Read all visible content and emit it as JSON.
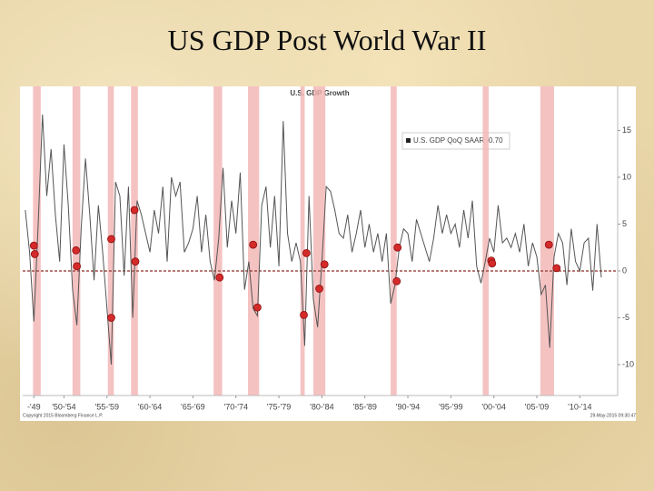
{
  "slide_title": "US GDP Post World War II",
  "chart_data": {
    "type": "line",
    "title": "U.S. GDP Growth",
    "legend_label": "U.S. GDP QoQ SAAR -0.70",
    "footer_left": "Copyright 2015 Bloomberg Finance L.P.",
    "footer_right": "29-May-2015 09:30:47",
    "xlim": [
      1947.7,
      2016.9
    ],
    "xticks": [
      {
        "value": 1949,
        "label": "-'49"
      },
      {
        "value": 1952.5,
        "label": "'50-'54"
      },
      {
        "value": 1957.5,
        "label": "'55-'59"
      },
      {
        "value": 1962.5,
        "label": "'60-'64"
      },
      {
        "value": 1967.5,
        "label": "'65-'69"
      },
      {
        "value": 1972.5,
        "label": "'70-'74"
      },
      {
        "value": 1977.5,
        "label": "'75-'79"
      },
      {
        "value": 1982.5,
        "label": "'80-'84"
      },
      {
        "value": 1987.5,
        "label": "'85-'89"
      },
      {
        "value": 1992.5,
        "label": "'90-'94"
      },
      {
        "value": 1997.5,
        "label": "'95-'99"
      },
      {
        "value": 2002.5,
        "label": "'00-'04"
      },
      {
        "value": 2007.5,
        "label": "'05-'09"
      },
      {
        "value": 2012.5,
        "label": "'10-'14"
      }
    ],
    "ylim": [
      -13.3,
      19.7
    ],
    "yticks": [
      15,
      10,
      5,
      0,
      -5,
      -10
    ],
    "reference_line": 0,
    "reference_color": "#a0504a",
    "recession_color": "#f3b3b3",
    "recessions": [
      [
        1948.9,
        1949.8
      ],
      [
        1953.5,
        1954.4
      ],
      [
        1957.6,
        1958.3
      ],
      [
        1960.3,
        1961.1
      ],
      [
        1969.9,
        1970.9
      ],
      [
        1973.9,
        1975.2
      ],
      [
        1980.0,
        1980.5
      ],
      [
        1981.5,
        1982.9
      ],
      [
        1990.5,
        1991.2
      ],
      [
        2001.2,
        2001.9
      ],
      [
        2007.9,
        2009.5
      ]
    ],
    "series": [
      {
        "name": "U.S. GDP QoQ SAAR",
        "color": "#555555",
        "x": [
          1948.0,
          1948.5,
          1949.0,
          1949.5,
          1950.0,
          1950.5,
          1951.0,
          1951.5,
          1952.0,
          1952.5,
          1953.0,
          1953.5,
          1954.0,
          1954.5,
          1955.0,
          1955.5,
          1956.0,
          1956.5,
          1957.0,
          1957.5,
          1958.0,
          1958.5,
          1959.0,
          1959.5,
          1960.0,
          1960.5,
          1961.0,
          1961.5,
          1962.0,
          1962.5,
          1963.0,
          1963.5,
          1964.0,
          1964.5,
          1965.0,
          1965.5,
          1966.0,
          1966.5,
          1967.0,
          1967.5,
          1968.0,
          1968.5,
          1969.0,
          1969.5,
          1970.0,
          1970.5,
          1971.0,
          1971.5,
          1972.0,
          1972.5,
          1973.0,
          1973.5,
          1974.0,
          1974.5,
          1975.0,
          1975.5,
          1976.0,
          1976.5,
          1977.0,
          1977.5,
          1978.0,
          1978.5,
          1979.0,
          1979.5,
          1980.0,
          1980.5,
          1981.0,
          1981.5,
          1982.0,
          1982.5,
          1983.0,
          1983.5,
          1984.0,
          1984.5,
          1985.0,
          1985.5,
          1986.0,
          1986.5,
          1987.0,
          1987.5,
          1988.0,
          1988.5,
          1989.0,
          1989.5,
          1990.0,
          1990.5,
          1991.0,
          1991.5,
          1992.0,
          1992.5,
          1993.0,
          1993.5,
          1994.0,
          1994.5,
          1995.0,
          1995.5,
          1996.0,
          1996.5,
          1997.0,
          1997.5,
          1998.0,
          1998.5,
          1999.0,
          1999.5,
          2000.0,
          2000.5,
          2001.0,
          2001.5,
          2002.0,
          2002.5,
          2003.0,
          2003.5,
          2004.0,
          2004.5,
          2005.0,
          2005.5,
          2006.0,
          2006.5,
          2007.0,
          2007.5,
          2008.0,
          2008.5,
          2009.0,
          2009.5,
          2010.0,
          2010.5,
          2011.0,
          2011.5,
          2012.0,
          2012.5,
          2013.0,
          2013.5,
          2014.0,
          2014.5,
          2015.0
        ],
        "values": [
          6.5,
          2.0,
          -5.4,
          5.0,
          16.7,
          8.0,
          13.0,
          6.0,
          1.0,
          13.5,
          7.0,
          -2.0,
          -5.8,
          4.5,
          12.0,
          6.0,
          -1.0,
          7.0,
          2.0,
          -4.0,
          -10.0,
          9.5,
          8.0,
          -0.5,
          9.0,
          -5.0,
          7.5,
          6.0,
          4.0,
          2.0,
          6.5,
          4.0,
          9.0,
          1.0,
          10.0,
          8.0,
          9.5,
          2.0,
          3.0,
          4.5,
          8.0,
          2.0,
          6.0,
          1.0,
          -1.0,
          3.5,
          11.0,
          2.5,
          7.5,
          4.0,
          10.5,
          -2.0,
          1.0,
          -4.0,
          -4.8,
          7.0,
          9.0,
          2.5,
          8.0,
          0.5,
          16.0,
          4.0,
          1.0,
          3.0,
          1.0,
          -8.0,
          8.0,
          -3.0,
          -6.0,
          1.0,
          9.0,
          8.5,
          6.5,
          4.0,
          3.5,
          6.0,
          2.0,
          4.0,
          6.5,
          2.5,
          5.0,
          2.0,
          4.0,
          1.0,
          4.0,
          -3.5,
          -1.5,
          2.5,
          4.5,
          4.0,
          1.0,
          5.5,
          4.0,
          2.5,
          1.0,
          3.5,
          7.0,
          4.0,
          6.0,
          4.0,
          5.0,
          2.5,
          6.5,
          3.5,
          7.5,
          0.5,
          -1.3,
          1.0,
          3.5,
          2.0,
          7.0,
          3.0,
          3.5,
          2.5,
          4.0,
          2.0,
          5.0,
          0.5,
          3.0,
          1.5,
          -2.5,
          -1.5,
          -8.2,
          1.5,
          4.0,
          3.0,
          -1.5,
          4.5,
          1.0,
          0.0,
          3.0,
          3.5,
          -2.1,
          5.0,
          -0.7
        ]
      }
    ],
    "markers": {
      "color": "#d42a2a",
      "x": [
        1949.0,
        1949.1,
        1953.9,
        1954.0,
        1958.0,
        1958.0,
        1960.7,
        1960.8,
        1970.6,
        1974.5,
        1975.0,
        1980.7,
        1980.4,
        1982.2,
        1982.8,
        1991.3,
        1991.2,
        2002.2,
        2002.3,
        2008.9,
        2009.8
      ],
      "values": [
        2.7,
        1.8,
        2.2,
        0.5,
        3.4,
        -5.0,
        6.5,
        1.0,
        -0.7,
        2.8,
        -3.9,
        1.9,
        -4.7,
        -1.9,
        0.7,
        2.5,
        -1.1,
        1.1,
        0.8,
        2.8,
        0.3
      ]
    }
  }
}
